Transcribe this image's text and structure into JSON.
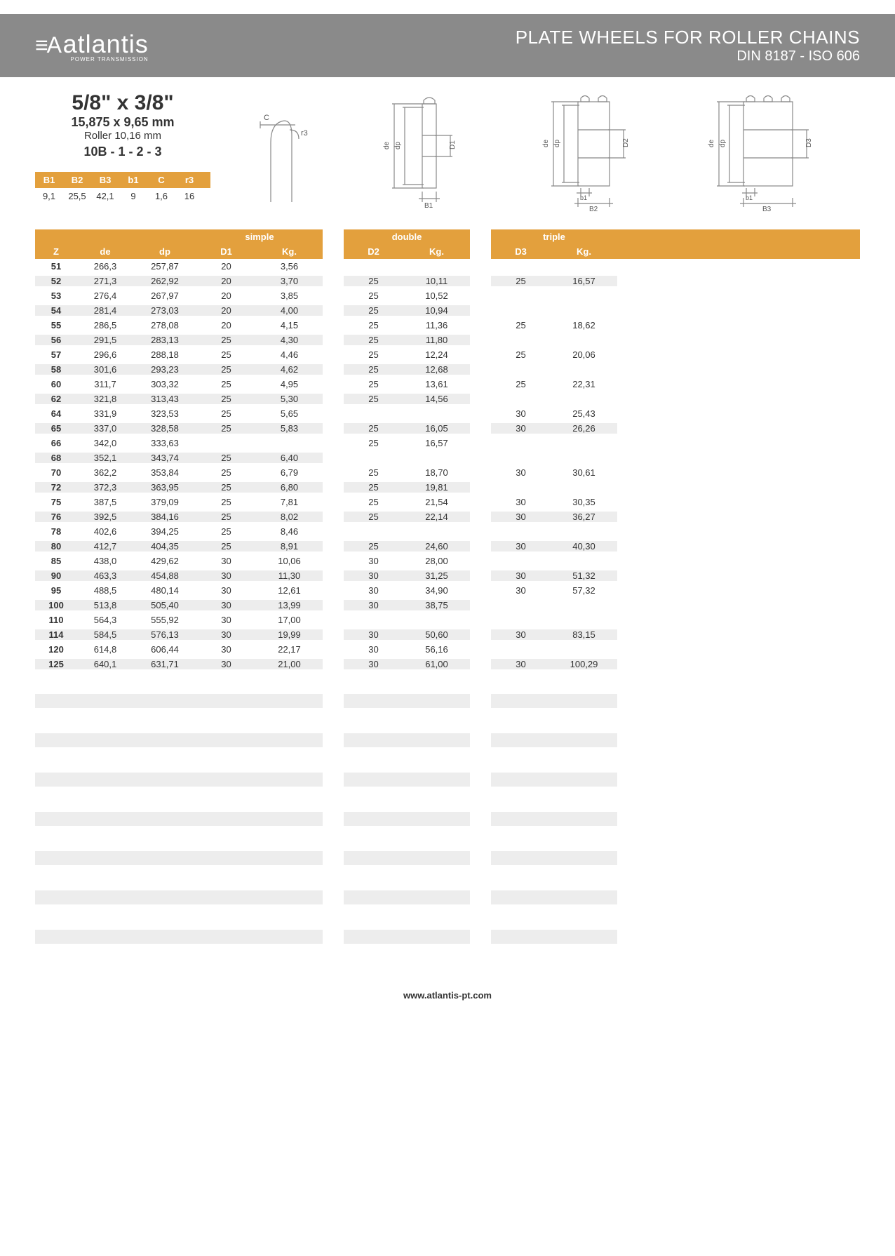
{
  "brand": {
    "name": "atlantis",
    "tagline": "POWER TRANSMISSION"
  },
  "header": {
    "title_line1": "PLATE WHEELS FOR ROLLER CHAINS",
    "title_line2": "DIN 8187 - ISO 606"
  },
  "spec": {
    "size_in": "5/8\" x 3/8\"",
    "size_mm": "15,875 x 9,65 mm",
    "roller": "Roller 10,16 mm",
    "code": "10B - 1 - 2 - 3"
  },
  "b_table": {
    "headers": [
      "B1",
      "B2",
      "B3",
      "b1",
      "C",
      "r3"
    ],
    "row": [
      "9,1",
      "25,5",
      "42,1",
      "9",
      "1,6",
      "16"
    ]
  },
  "colors": {
    "header_band": "#8a8a8a",
    "accent": "#e3a03d",
    "row_stripe": "#ededed",
    "text": "#333333",
    "diagram_stroke": "#888888"
  },
  "diagram_labels": {
    "c": "C",
    "r3": "r3",
    "de": "de",
    "dp": "dp",
    "d1": "D1",
    "d2": "D2",
    "d3": "D3",
    "b1_u": "B1",
    "b1_l": "b1",
    "b2": "B2",
    "b3": "B3"
  },
  "main_table": {
    "group_labels": {
      "simple": "simple",
      "double": "double",
      "triple": "triple"
    },
    "sub_headers": {
      "z": "Z",
      "de": "de",
      "dp": "dp",
      "d1": "D1",
      "d2": "D2",
      "d3": "D3",
      "kg": "Kg."
    },
    "rows": [
      {
        "z": "51",
        "de": "266,3",
        "dp": "257,87",
        "d1": "20",
        "kg1": "3,56",
        "d2": "",
        "kg2": "",
        "d3": "",
        "kg3": ""
      },
      {
        "z": "52",
        "de": "271,3",
        "dp": "262,92",
        "d1": "20",
        "kg1": "3,70",
        "d2": "25",
        "kg2": "10,11",
        "d3": "25",
        "kg3": "16,57"
      },
      {
        "z": "53",
        "de": "276,4",
        "dp": "267,97",
        "d1": "20",
        "kg1": "3,85",
        "d2": "25",
        "kg2": "10,52",
        "d3": "",
        "kg3": ""
      },
      {
        "z": "54",
        "de": "281,4",
        "dp": "273,03",
        "d1": "20",
        "kg1": "4,00",
        "d2": "25",
        "kg2": "10,94",
        "d3": "",
        "kg3": ""
      },
      {
        "z": "55",
        "de": "286,5",
        "dp": "278,08",
        "d1": "20",
        "kg1": "4,15",
        "d2": "25",
        "kg2": "11,36",
        "d3": "25",
        "kg3": "18,62"
      },
      {
        "z": "56",
        "de": "291,5",
        "dp": "283,13",
        "d1": "25",
        "kg1": "4,30",
        "d2": "25",
        "kg2": "11,80",
        "d3": "",
        "kg3": ""
      },
      {
        "z": "57",
        "de": "296,6",
        "dp": "288,18",
        "d1": "25",
        "kg1": "4,46",
        "d2": "25",
        "kg2": "12,24",
        "d3": "25",
        "kg3": "20,06"
      },
      {
        "z": "58",
        "de": "301,6",
        "dp": "293,23",
        "d1": "25",
        "kg1": "4,62",
        "d2": "25",
        "kg2": "12,68",
        "d3": "",
        "kg3": ""
      },
      {
        "z": "60",
        "de": "311,7",
        "dp": "303,32",
        "d1": "25",
        "kg1": "4,95",
        "d2": "25",
        "kg2": "13,61",
        "d3": "25",
        "kg3": "22,31"
      },
      {
        "z": "62",
        "de": "321,8",
        "dp": "313,43",
        "d1": "25",
        "kg1": "5,30",
        "d2": "25",
        "kg2": "14,56",
        "d3": "",
        "kg3": ""
      },
      {
        "z": "64",
        "de": "331,9",
        "dp": "323,53",
        "d1": "25",
        "kg1": "5,65",
        "d2": "",
        "kg2": "",
        "d3": "30",
        "kg3": "25,43"
      },
      {
        "z": "65",
        "de": "337,0",
        "dp": "328,58",
        "d1": "25",
        "kg1": "5,83",
        "d2": "25",
        "kg2": "16,05",
        "d3": "30",
        "kg3": "26,26"
      },
      {
        "z": "66",
        "de": "342,0",
        "dp": "333,63",
        "d1": "",
        "kg1": "",
        "d2": "25",
        "kg2": "16,57",
        "d3": "",
        "kg3": ""
      },
      {
        "z": "68",
        "de": "352,1",
        "dp": "343,74",
        "d1": "25",
        "kg1": "6,40",
        "d2": "",
        "kg2": "",
        "d3": "",
        "kg3": ""
      },
      {
        "z": "70",
        "de": "362,2",
        "dp": "353,84",
        "d1": "25",
        "kg1": "6,79",
        "d2": "25",
        "kg2": "18,70",
        "d3": "30",
        "kg3": "30,61"
      },
      {
        "z": "72",
        "de": "372,3",
        "dp": "363,95",
        "d1": "25",
        "kg1": "6,80",
        "d2": "25",
        "kg2": "19,81",
        "d3": "",
        "kg3": ""
      },
      {
        "z": "75",
        "de": "387,5",
        "dp": "379,09",
        "d1": "25",
        "kg1": "7,81",
        "d2": "25",
        "kg2": "21,54",
        "d3": "30",
        "kg3": "30,35"
      },
      {
        "z": "76",
        "de": "392,5",
        "dp": "384,16",
        "d1": "25",
        "kg1": "8,02",
        "d2": "25",
        "kg2": "22,14",
        "d3": "30",
        "kg3": "36,27"
      },
      {
        "z": "78",
        "de": "402,6",
        "dp": "394,25",
        "d1": "25",
        "kg1": "8,46",
        "d2": "",
        "kg2": "",
        "d3": "",
        "kg3": ""
      },
      {
        "z": "80",
        "de": "412,7",
        "dp": "404,35",
        "d1": "25",
        "kg1": "8,91",
        "d2": "25",
        "kg2": "24,60",
        "d3": "30",
        "kg3": "40,30"
      },
      {
        "z": "85",
        "de": "438,0",
        "dp": "429,62",
        "d1": "30",
        "kg1": "10,06",
        "d2": "30",
        "kg2": "28,00",
        "d3": "",
        "kg3": ""
      },
      {
        "z": "90",
        "de": "463,3",
        "dp": "454,88",
        "d1": "30",
        "kg1": "11,30",
        "d2": "30",
        "kg2": "31,25",
        "d3": "30",
        "kg3": "51,32"
      },
      {
        "z": "95",
        "de": "488,5",
        "dp": "480,14",
        "d1": "30",
        "kg1": "12,61",
        "d2": "30",
        "kg2": "34,90",
        "d3": "30",
        "kg3": "57,32"
      },
      {
        "z": "100",
        "de": "513,8",
        "dp": "505,40",
        "d1": "30",
        "kg1": "13,99",
        "d2": "30",
        "kg2": "38,75",
        "d3": "",
        "kg3": ""
      },
      {
        "z": "110",
        "de": "564,3",
        "dp": "555,92",
        "d1": "30",
        "kg1": "17,00",
        "d2": "",
        "kg2": "",
        "d3": "",
        "kg3": ""
      },
      {
        "z": "114",
        "de": "584,5",
        "dp": "576,13",
        "d1": "30",
        "kg1": "19,99",
        "d2": "30",
        "kg2": "50,60",
        "d3": "30",
        "kg3": "83,15"
      },
      {
        "z": "120",
        "de": "614,8",
        "dp": "606,44",
        "d1": "30",
        "kg1": "22,17",
        "d2": "30",
        "kg2": "56,16",
        "d3": "",
        "kg3": ""
      },
      {
        "z": "125",
        "de": "640,1",
        "dp": "631,71",
        "d1": "30",
        "kg1": "21,00",
        "d2": "30",
        "kg2": "61,00",
        "d3": "30",
        "kg3": "100,29"
      }
    ],
    "empty_row_count": 14
  },
  "footer": {
    "url": "www.atlantis-pt.com"
  }
}
